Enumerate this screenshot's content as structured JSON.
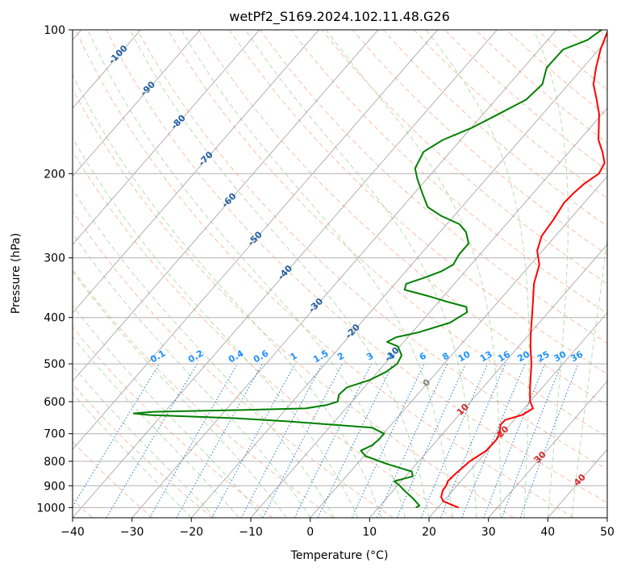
{
  "chart_data": {
    "type": "line",
    "title": "wetPf2_S169.2024.102.11.48.G26",
    "xlabel": "Temperature (°C)",
    "ylabel": "Pressure (hPa)",
    "xlim": [
      -40,
      50
    ],
    "ylim": [
      1050,
      100
    ],
    "y_scale": "log",
    "x_ticks": [
      -40,
      -30,
      -20,
      -10,
      0,
      10,
      20,
      30,
      40,
      50
    ],
    "y_ticks": [
      100,
      200,
      300,
      400,
      500,
      600,
      700,
      800,
      900,
      1000
    ],
    "grid": true,
    "series": [
      {
        "role": "temperature",
        "color": "#ff0000",
        "points": [
          [
            1000,
            23.5
          ],
          [
            970,
            20
          ],
          [
            950,
            19
          ],
          [
            920,
            18.3
          ],
          [
            900,
            18.2
          ],
          [
            880,
            17.8
          ],
          [
            850,
            18
          ],
          [
            800,
            18.6
          ],
          [
            760,
            19.8
          ],
          [
            720,
            19.9
          ],
          [
            700,
            19.5
          ],
          [
            670,
            18.4
          ],
          [
            655,
            18.5
          ],
          [
            640,
            20.6
          ],
          [
            620,
            21.5
          ],
          [
            600,
            20
          ],
          [
            560,
            17.9
          ],
          [
            500,
            14.7
          ],
          [
            460,
            12
          ],
          [
            430,
            10
          ],
          [
            400,
            8
          ],
          [
            370,
            5.8
          ],
          [
            340,
            3.4
          ],
          [
            310,
            1.5
          ],
          [
            290,
            -0.9
          ],
          [
            270,
            -2.3
          ],
          [
            250,
            -2.7
          ],
          [
            230,
            -3.4
          ],
          [
            220,
            -3.2
          ],
          [
            210,
            -2.8
          ],
          [
            200,
            -1.8
          ],
          [
            190,
            -2.4
          ],
          [
            180,
            -4.4
          ],
          [
            170,
            -6.8
          ],
          [
            160,
            -8.6
          ],
          [
            150,
            -10.5
          ],
          [
            140,
            -13
          ],
          [
            130,
            -15.8
          ],
          [
            120,
            -17.8
          ],
          [
            110,
            -19.7
          ],
          [
            100,
            -21.3
          ]
        ]
      },
      {
        "role": "dewpoint",
        "color": "#008000",
        "points": [
          [
            1000,
            16.3
          ],
          [
            990,
            16.6
          ],
          [
            960,
            14.7
          ],
          [
            920,
            11.8
          ],
          [
            900,
            10.4
          ],
          [
            880,
            8.8
          ],
          [
            860,
            11.2
          ],
          [
            840,
            10.3
          ],
          [
            810,
            5
          ],
          [
            780,
            0.3
          ],
          [
            760,
            -1.3
          ],
          [
            740,
            -0.2
          ],
          [
            720,
            0.1
          ],
          [
            700,
            0.1
          ],
          [
            680,
            -2.8
          ],
          [
            660,
            -17.8
          ],
          [
            650,
            -27
          ],
          [
            640,
            -42
          ],
          [
            635,
            -45
          ],
          [
            630,
            -42
          ],
          [
            625,
            -28
          ],
          [
            620,
            -16.8
          ],
          [
            610,
            -13.8
          ],
          [
            600,
            -12.4
          ],
          [
            580,
            -13.2
          ],
          [
            560,
            -12.9
          ],
          [
            540,
            -10.1
          ],
          [
            520,
            -8.6
          ],
          [
            500,
            -7.9
          ],
          [
            480,
            -8.4
          ],
          [
            460,
            -10.3
          ],
          [
            450,
            -12.8
          ],
          [
            440,
            -12
          ],
          [
            430,
            -9
          ],
          [
            410,
            -5
          ],
          [
            400,
            -4.4
          ],
          [
            390,
            -3.7
          ],
          [
            380,
            -4.6
          ],
          [
            370,
            -8.9
          ],
          [
            360,
            -12.9
          ],
          [
            350,
            -17.5
          ],
          [
            340,
            -18.1
          ],
          [
            330,
            -15.9
          ],
          [
            320,
            -14
          ],
          [
            310,
            -13
          ],
          [
            295,
            -13.5
          ],
          [
            280,
            -13.5
          ],
          [
            265,
            -15.6
          ],
          [
            255,
            -17.9
          ],
          [
            245,
            -22.2
          ],
          [
            235,
            -25.7
          ],
          [
            220,
            -28.6
          ],
          [
            205,
            -31.6
          ],
          [
            195,
            -33.5
          ],
          [
            180,
            -34.5
          ],
          [
            170,
            -33
          ],
          [
            160,
            -29.8
          ],
          [
            150,
            -27.4
          ],
          [
            140,
            -24.9
          ],
          [
            130,
            -24.4
          ],
          [
            120,
            -26.1
          ],
          [
            110,
            -26
          ],
          [
            105,
            -23.3
          ],
          [
            100,
            -22.4
          ]
        ]
      }
    ],
    "isotherm_labels": [
      "-100",
      "-90",
      "-80",
      "-70",
      "-60",
      "-50",
      "-40",
      "-30",
      "-20",
      "-10",
      "0",
      "10",
      "20",
      "30",
      "40"
    ],
    "isotherm_label_values": [
      -100,
      -90,
      -80,
      -70,
      -60,
      -50,
      -40,
      -30,
      -20,
      -10,
      0,
      10,
      20,
      30,
      40
    ],
    "mixing_ratio_labels": [
      "0.1",
      "0.2",
      "0.4",
      "0.6",
      "1",
      "1.5",
      "2",
      "3",
      "4",
      "6",
      "8",
      "10",
      "13",
      "16",
      "20",
      "25",
      "30",
      "36"
    ],
    "mixing_ratio_values": [
      0.1,
      0.2,
      0.4,
      0.6,
      1,
      1.5,
      2,
      3,
      4,
      6,
      8,
      10,
      13,
      16,
      20,
      25,
      30,
      36
    ],
    "colors": {
      "grid": "#b0b0b0",
      "isotherm": "#777777",
      "dry_adiabat": "#f4a582",
      "moist_adiabat": "#a6d49f",
      "mixing_ratio": "#1f78d1",
      "isotherm_label_cold": "#1f5fa0",
      "isotherm_label_warm": "#d62728",
      "isotherm_label_zero": "#808080",
      "mixing_label": "#1e90ff"
    }
  }
}
